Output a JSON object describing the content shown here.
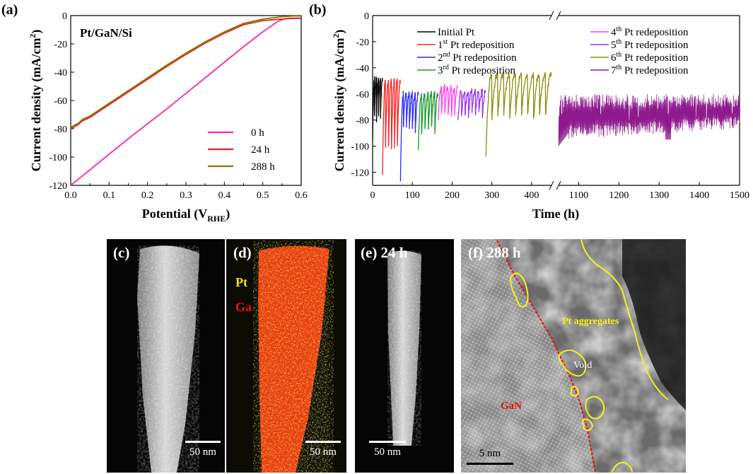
{
  "panels": {
    "a": "(a)",
    "b": "(b)",
    "c": "(c)",
    "d": "(d)",
    "e": "(e)",
    "f": "(f)"
  },
  "chart_data": [
    {
      "type": "line",
      "panel": "(a)",
      "title": "Pt/GaN/Si",
      "xlabel": "Potential (V",
      "xlabel_sub": "RHE",
      "xlabel_end": ")",
      "ylabel": "Current density (mA/cm",
      "ylabel_sup": "2",
      "ylabel_end": ")",
      "xlim": [
        0.0,
        0.6
      ],
      "ylim": [
        -120,
        0
      ],
      "xticks": [
        "0.0",
        "0.1",
        "0.2",
        "0.3",
        "0.4",
        "0.5",
        "0.6"
      ],
      "yticks": [
        "0",
        "-20",
        "-40",
        "-60",
        "-80",
        "-100",
        "-120"
      ],
      "legend_position": "bottom-right",
      "series": [
        {
          "name": "0 h",
          "color": "#ff2aa8",
          "x": [
            0.0,
            0.05,
            0.1,
            0.15,
            0.2,
            0.25,
            0.3,
            0.35,
            0.4,
            0.45,
            0.5,
            0.54,
            0.56,
            0.58,
            0.6
          ],
          "y": [
            -120,
            -109,
            -98,
            -87,
            -76.5,
            -66,
            -55,
            -44,
            -33,
            -22,
            -11.5,
            -4,
            -2,
            -1.8,
            -1.8
          ]
        },
        {
          "name": "24 h",
          "color": "#e8211e",
          "x": [
            0.0,
            0.02,
            0.03,
            0.05,
            0.1,
            0.15,
            0.2,
            0.25,
            0.3,
            0.35,
            0.4,
            0.45,
            0.5,
            0.55,
            0.58,
            0.6
          ],
          "y": [
            -80,
            -77,
            -74.5,
            -72,
            -63,
            -54,
            -45,
            -36,
            -27.5,
            -19.5,
            -12.5,
            -6.5,
            -3.5,
            -2.5,
            -2,
            -2
          ]
        },
        {
          "name": "288 h",
          "color": "#7f7f00",
          "x": [
            0.0,
            0.02,
            0.03,
            0.05,
            0.1,
            0.15,
            0.2,
            0.25,
            0.3,
            0.35,
            0.4,
            0.45,
            0.5,
            0.55,
            0.58,
            0.6
          ],
          "y": [
            -79,
            -76,
            -73.5,
            -71,
            -62,
            -53,
            -44,
            -35,
            -26.5,
            -18.5,
            -11.5,
            -5.5,
            -2.5,
            -0.8,
            -0.3,
            -0.3
          ]
        }
      ]
    },
    {
      "type": "line",
      "panel": "(b)",
      "xlabel": "Time (h)",
      "ylabel": "Current density (mA/cm",
      "ylabel_sup": "2",
      "ylabel_end": ")",
      "ylim": [
        -130,
        0
      ],
      "axis_break": [
        450,
        1050
      ],
      "xticks_left": [
        "0",
        "100",
        "200",
        "300",
        "400"
      ],
      "xticks_right": [
        "1100",
        "1200",
        "1300",
        "1400",
        "1500"
      ],
      "yticks": [
        "0",
        "-20",
        "-40",
        "-60",
        "-80",
        "-100",
        "-120"
      ],
      "legend_position": "top",
      "series": [
        {
          "name_pre": "Initial Pt",
          "sup": "",
          "name_post": "",
          "color": "#000000",
          "t": [
            0,
            25
          ],
          "top": -48,
          "bottom": -80,
          "deep": -95,
          "cycles": 5
        },
        {
          "name_pre": "1",
          "sup": "st",
          "name_post": " Pt redeposition",
          "color": "#ff2020",
          "t": [
            25,
            70
          ],
          "top": -50,
          "bottom": -100,
          "deep": -122,
          "cycles": 6
        },
        {
          "name_pre": "2",
          "sup": "nd",
          "name_post": " Pt redeposition",
          "color": "#2a2aff",
          "t": [
            70,
            115
          ],
          "top": -60,
          "bottom": -88,
          "deep": -127,
          "cycles": 6
        },
        {
          "name_pre": "3",
          "sup": "rd",
          "name_post": " Pt redeposition",
          "color": "#189a2c",
          "t": [
            115,
            165
          ],
          "top": -60,
          "bottom": -88,
          "deep": -103,
          "cycles": 6
        },
        {
          "name_pre": "4",
          "sup": "th",
          "name_post": " Pt redeposition",
          "color": "#ff44ee",
          "t": [
            165,
            215
          ],
          "top": -55,
          "bottom": -76,
          "deep": -80,
          "cycles": 6
        },
        {
          "name_pre": "5",
          "sup": "th",
          "name_post": " Pt redeposition",
          "color": "#9a35f0",
          "t": [
            215,
            285
          ],
          "top": -58,
          "bottom": -76,
          "deep": -80,
          "cycles": 8
        },
        {
          "name_pre": "6",
          "sup": "th",
          "name_post": " Pt redeposition",
          "color": "#8c8c0e",
          "t": [
            285,
            450
          ],
          "top": -45,
          "bottom": -78,
          "deep": -108,
          "cycles": 11
        },
        {
          "name_pre": "7",
          "sup": "th",
          "name_post": " Pt redeposition",
          "color": "#8e1a8e",
          "t": [
            1050,
            1500
          ],
          "top": -65,
          "bottom": -90,
          "deep": -100,
          "cycles": 0
        }
      ]
    }
  ],
  "images": {
    "c": {
      "label": "(c)",
      "scale": "50 nm"
    },
    "d": {
      "label": "(d)",
      "scale": "50 nm",
      "pt_label": "Pt",
      "ga_label": "Ga",
      "pt_color": "#f0e020",
      "ga_color": "#e81800"
    },
    "e": {
      "label": "(e) 24 h",
      "scale": "50 nm"
    },
    "f": {
      "label": "(f) 288 h",
      "scale": "5 nm",
      "aggregates": "Pt aggregates",
      "void": "Void",
      "gan": "GaN",
      "outline_color": "#f2f21c",
      "boundary_color": "#e81010"
    }
  }
}
